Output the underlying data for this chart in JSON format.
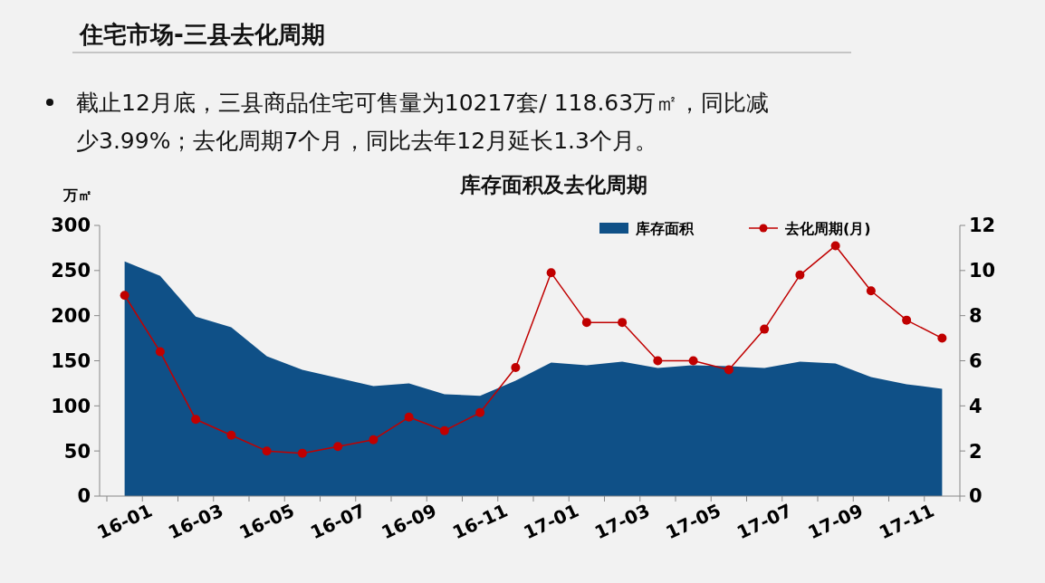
{
  "chart_data": {
    "type": "area",
    "title": "库存面积及去化周期",
    "subtitle": "住宅市场-三县去化周期",
    "annotations": [
      "截止12月底，三县商品住宅可售量为10217套/ 118.63万㎡，同比减少3.99%；去化周期7个月，同比去年12月延长1.3个月。"
    ],
    "ylabel": "万㎡",
    "categories": [
      "16-01",
      null,
      "16-03",
      null,
      "16-05",
      null,
      "16-07",
      null,
      "16-09",
      null,
      "16-11",
      null,
      "17-01",
      null,
      "17-03",
      null,
      "17-05",
      null,
      "17-07",
      null,
      "17-09",
      null,
      "17-11",
      null
    ],
    "series": [
      {
        "name": "库存面积",
        "color": "#0f5087",
        "values": [
          260,
          244,
          199,
          187,
          155,
          140,
          131,
          122,
          125,
          113,
          111,
          128,
          148,
          145,
          149,
          142,
          145,
          144,
          142,
          149,
          147,
          132,
          124,
          119
        ]
      },
      {
        "name": "去化周期(月)",
        "type": "line",
        "axis": "y2",
        "color": "#c00000",
        "marker": "circle",
        "values": [
          8.9,
          6.4,
          3.4,
          2.7,
          2.0,
          1.9,
          2.2,
          2.5,
          3.5,
          2.9,
          3.7,
          5.7,
          9.9,
          7.7,
          7.7,
          6.0,
          6.0,
          5.6,
          7.4,
          9.8,
          11.1,
          9.1,
          7.8,
          7.0
        ]
      }
    ],
    "ylim": [
      0,
      300
    ],
    "yticks": [
      0,
      50,
      100,
      150,
      200,
      250,
      300
    ],
    "y2lim": [
      0,
      12
    ],
    "y2ticks": [
      0,
      2,
      4,
      6,
      8,
      10,
      12
    ],
    "legend": "top",
    "grid": false
  }
}
